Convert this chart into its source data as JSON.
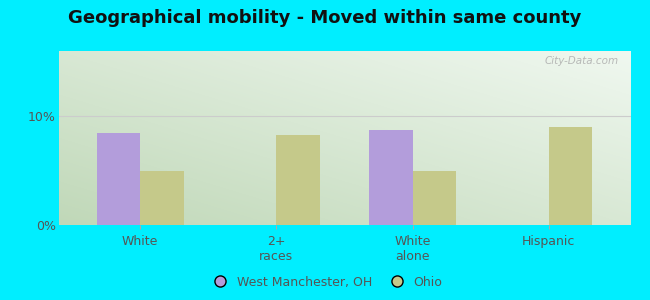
{
  "title": "Geographical mobility - Moved within same county",
  "categories": [
    "White",
    "2+\nraces",
    "White\nalone",
    "Hispanic"
  ],
  "west_manchester_values": [
    8.5,
    0,
    8.7,
    0
  ],
  "ohio_values": [
    5.0,
    8.3,
    5.0,
    9.0
  ],
  "west_manchester_color": "#b39ddb",
  "ohio_color": "#c5c98a",
  "bar_width": 0.32,
  "ylim": [
    0,
    16
  ],
  "yticks": [
    0,
    10
  ],
  "ytick_labels": [
    "0%",
    "10%"
  ],
  "outer_bg": "#00eeff",
  "legend_labels": [
    "West Manchester, OH",
    "Ohio"
  ],
  "watermark": "City-Data.com",
  "title_fontsize": 13,
  "label_fontsize": 9,
  "tick_fontsize": 9
}
